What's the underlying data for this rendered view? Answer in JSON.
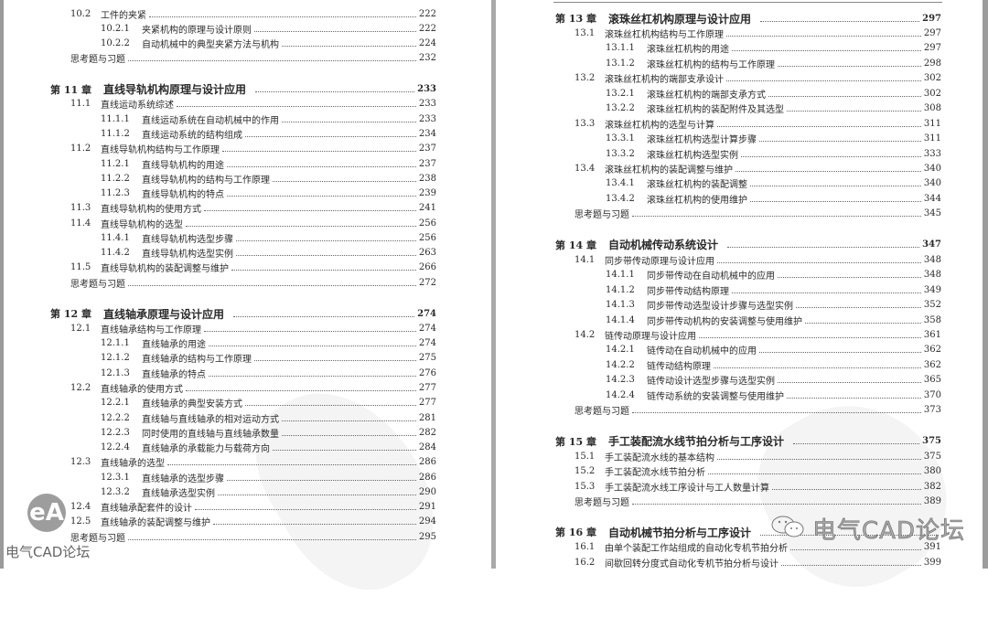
{
  "left_page": {
    "entries": [
      {
        "level": "section",
        "num": "10.2",
        "title": "工件的夹紧",
        "page": "222"
      },
      {
        "level": "subsection",
        "num": "10.2.1",
        "title": "夹紧机构的原理与设计原则",
        "page": "222"
      },
      {
        "level": "subsection",
        "num": "10.2.2",
        "title": "自动机械中的典型夹紧方法与机构",
        "page": "224"
      },
      {
        "level": "exercise",
        "num": "",
        "title": "思考题与习题",
        "page": "232"
      },
      {
        "level": "chapter",
        "num": "第 11 章",
        "title": "直线导轨机构原理与设计应用",
        "page": "233"
      },
      {
        "level": "section",
        "num": "11.1",
        "title": "直线运动系统综述",
        "page": "233"
      },
      {
        "level": "subsection",
        "num": "11.1.1",
        "title": "直线运动系统在自动机械中的作用",
        "page": "233"
      },
      {
        "level": "subsection",
        "num": "11.1.2",
        "title": "直线运动系统的结构组成",
        "page": "234"
      },
      {
        "level": "section",
        "num": "11.2",
        "title": "直线导轨机构结构与工作原理",
        "page": "237"
      },
      {
        "level": "subsection",
        "num": "11.2.1",
        "title": "直线导轨机构的用途",
        "page": "237"
      },
      {
        "level": "subsection",
        "num": "11.2.2",
        "title": "直线导轨机构的结构与工作原理",
        "page": "238"
      },
      {
        "level": "subsection",
        "num": "11.2.3",
        "title": "直线导轨机构的特点",
        "page": "239"
      },
      {
        "level": "section",
        "num": "11.3",
        "title": "直线导轨机构的使用方式",
        "page": "241"
      },
      {
        "level": "section",
        "num": "11.4",
        "title": "直线导轨机构的选型",
        "page": "256"
      },
      {
        "level": "subsection",
        "num": "11.4.1",
        "title": "直线导轨机构选型步骤",
        "page": "256"
      },
      {
        "level": "subsection",
        "num": "11.4.2",
        "title": "直线导轨机构选型实例",
        "page": "263"
      },
      {
        "level": "section",
        "num": "11.5",
        "title": "直线导轨机构的装配调整与维护",
        "page": "266"
      },
      {
        "level": "exercise",
        "num": "",
        "title": "思考题与习题",
        "page": "272"
      },
      {
        "level": "chapter",
        "num": "第 12 章",
        "title": "直线轴承原理与设计应用",
        "page": "274"
      },
      {
        "level": "section",
        "num": "12.1",
        "title": "直线轴承结构与工作原理",
        "page": "274"
      },
      {
        "level": "subsection",
        "num": "12.1.1",
        "title": "直线轴承的用途",
        "page": "274"
      },
      {
        "level": "subsection",
        "num": "12.1.2",
        "title": "直线轴承的结构与工作原理",
        "page": "275"
      },
      {
        "level": "subsection",
        "num": "12.1.3",
        "title": "直线轴承的特点",
        "page": "276"
      },
      {
        "level": "section",
        "num": "12.2",
        "title": "直线轴承的使用方式",
        "page": "277"
      },
      {
        "level": "subsection",
        "num": "12.2.1",
        "title": "直线轴承的典型安装方式",
        "page": "277"
      },
      {
        "level": "subsection",
        "num": "12.2.2",
        "title": "直线轴与直线轴承的相对运动方式",
        "page": "281"
      },
      {
        "level": "subsection",
        "num": "12.2.3",
        "title": "同时使用的直线轴与直线轴承数量",
        "page": "282"
      },
      {
        "level": "subsection",
        "num": "12.2.4",
        "title": "直线轴承的承载能力与载荷方向",
        "page": "284"
      },
      {
        "level": "section",
        "num": "12.3",
        "title": "直线轴承的选型",
        "page": "286"
      },
      {
        "level": "subsection",
        "num": "12.3.1",
        "title": "直线轴承的选型步骤",
        "page": "286"
      },
      {
        "level": "subsection",
        "num": "12.3.2",
        "title": "直线轴承选型实例",
        "page": "290"
      },
      {
        "level": "section",
        "num": "12.4",
        "title": "直线轴承配套件的设计",
        "page": "291"
      },
      {
        "level": "section",
        "num": "12.5",
        "title": "直线轴承的装配调整与维护",
        "page": "294"
      },
      {
        "level": "exercise",
        "num": "",
        "title": "思考题与习题",
        "page": "295"
      }
    ]
  },
  "right_page": {
    "entries": [
      {
        "level": "chapter",
        "num": "第 13 章",
        "title": "滚珠丝杠机构原理与设计应用",
        "page": "297"
      },
      {
        "level": "section",
        "num": "13.1",
        "title": "滚珠丝杠机构结构与工作原理",
        "page": "297"
      },
      {
        "level": "subsection",
        "num": "13.1.1",
        "title": "滚珠丝杠机构的用途",
        "page": "297"
      },
      {
        "level": "subsection",
        "num": "13.1.2",
        "title": "滚珠丝杠机构的结构与工作原理",
        "page": "298"
      },
      {
        "level": "section",
        "num": "13.2",
        "title": "滚珠丝杠机构的端部支承设计",
        "page": "302"
      },
      {
        "level": "subsection",
        "num": "13.2.1",
        "title": "滚珠丝杠机构的端部支承方式",
        "page": "302"
      },
      {
        "level": "subsection",
        "num": "13.2.2",
        "title": "滚珠丝杠机构的装配附件及其选型",
        "page": "308"
      },
      {
        "level": "section",
        "num": "13.3",
        "title": "滚珠丝杠机构的选型与计算",
        "page": "311"
      },
      {
        "level": "subsection",
        "num": "13.3.1",
        "title": "滚珠丝杠机构选型计算步骤",
        "page": "311"
      },
      {
        "level": "subsection",
        "num": "13.3.2",
        "title": "滚珠丝杠机构选型实例",
        "page": "333"
      },
      {
        "level": "section",
        "num": "13.4",
        "title": "滚珠丝杠机构的装配调整与维护",
        "page": "340"
      },
      {
        "level": "subsection",
        "num": "13.4.1",
        "title": "滚珠丝杠机构的装配调整",
        "page": "340"
      },
      {
        "level": "subsection",
        "num": "13.4.2",
        "title": "滚珠丝杠机构的使用维护",
        "page": "344"
      },
      {
        "level": "exercise",
        "num": "",
        "title": "思考题与习题",
        "page": "345"
      },
      {
        "level": "chapter",
        "num": "第 14 章",
        "title": "自动机械传动系统设计",
        "page": "347"
      },
      {
        "level": "section",
        "num": "14.1",
        "title": "同步带传动原理与设计应用",
        "page": "348"
      },
      {
        "level": "subsection",
        "num": "14.1.1",
        "title": "同步带传动在自动机械中的应用",
        "page": "348"
      },
      {
        "level": "subsection",
        "num": "14.1.2",
        "title": "同步带传动结构原理",
        "page": "349"
      },
      {
        "level": "subsection",
        "num": "14.1.3",
        "title": "同步带传动选型设计步骤与选型实例",
        "page": "352"
      },
      {
        "level": "subsection",
        "num": "14.1.4",
        "title": "同步带传动机构的安装调整与使用维护",
        "page": "358"
      },
      {
        "level": "section",
        "num": "14.2",
        "title": "链传动原理与设计应用",
        "page": "361"
      },
      {
        "level": "subsection",
        "num": "14.2.1",
        "title": "链传动在自动机械中的应用",
        "page": "362"
      },
      {
        "level": "subsection",
        "num": "14.2.2",
        "title": "链传动结构原理",
        "page": "362"
      },
      {
        "level": "subsection",
        "num": "14.2.3",
        "title": "链传动设计选型步骤与选型实例",
        "page": "365"
      },
      {
        "level": "subsection",
        "num": "14.2.4",
        "title": "链传动系统的安装调整与使用维护",
        "page": "370"
      },
      {
        "level": "exercise",
        "num": "",
        "title": "思考题与习题",
        "page": "373"
      },
      {
        "level": "chapter",
        "num": "第 15 章",
        "title": "手工装配流水线节拍分析与工序设计",
        "page": "375"
      },
      {
        "level": "section",
        "num": "15.1",
        "title": "手工装配流水线的基本结构",
        "page": "375"
      },
      {
        "level": "section",
        "num": "15.2",
        "title": "手工装配流水线节拍分析",
        "page": "380"
      },
      {
        "level": "section",
        "num": "15.3",
        "title": "手工装配流水线工序设计与工人数量计算",
        "page": "382"
      },
      {
        "level": "exercise",
        "num": "",
        "title": "思考题与习题",
        "page": "389"
      },
      {
        "level": "chapter",
        "num": "第 16 章",
        "title": "自动机械节拍分析与工序设计",
        "page": ""
      },
      {
        "level": "section",
        "num": "16.1",
        "title": "由单个装配工作站组成的自动化专机节拍分析",
        "page": "391"
      },
      {
        "level": "section",
        "num": "16.2",
        "title": "间歇回转分度式自动化专机节拍分析与设计",
        "page": "399"
      }
    ]
  },
  "watermarks": {
    "left_logo": "eA",
    "left_text": "电气CAD论坛",
    "right_text": "电气CAD论坛",
    "right_icon": "wechat-icon"
  }
}
